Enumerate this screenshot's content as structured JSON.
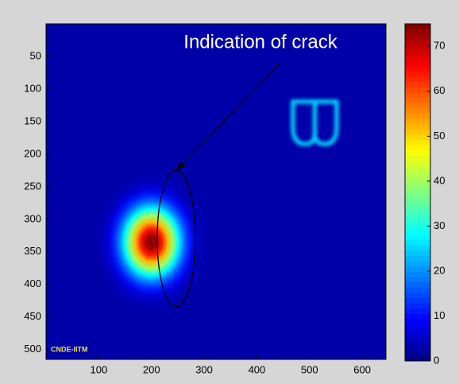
{
  "chart_data": {
    "type": "heatmap",
    "annotation": "Indication of crack",
    "watermark": "CNDE-IITM",
    "colormap": "jet",
    "xlim": [
      0,
      645
    ],
    "ylim": [
      515,
      0
    ],
    "xticks": [
      100,
      200,
      300,
      400,
      500,
      600
    ],
    "yticks": [
      50,
      100,
      150,
      200,
      250,
      300,
      350,
      400,
      450,
      500
    ],
    "clim": [
      0,
      75
    ],
    "cticks": [
      0,
      10,
      20,
      30,
      40,
      50,
      60,
      70
    ],
    "background": 3,
    "features": [
      {
        "shape": "spot",
        "x": 200,
        "y": 335,
        "sigma": 35,
        "value": 75
      },
      {
        "shape": "ring",
        "x": 510,
        "y": 152,
        "width": 83,
        "height": 65,
        "value": 26
      }
    ]
  }
}
